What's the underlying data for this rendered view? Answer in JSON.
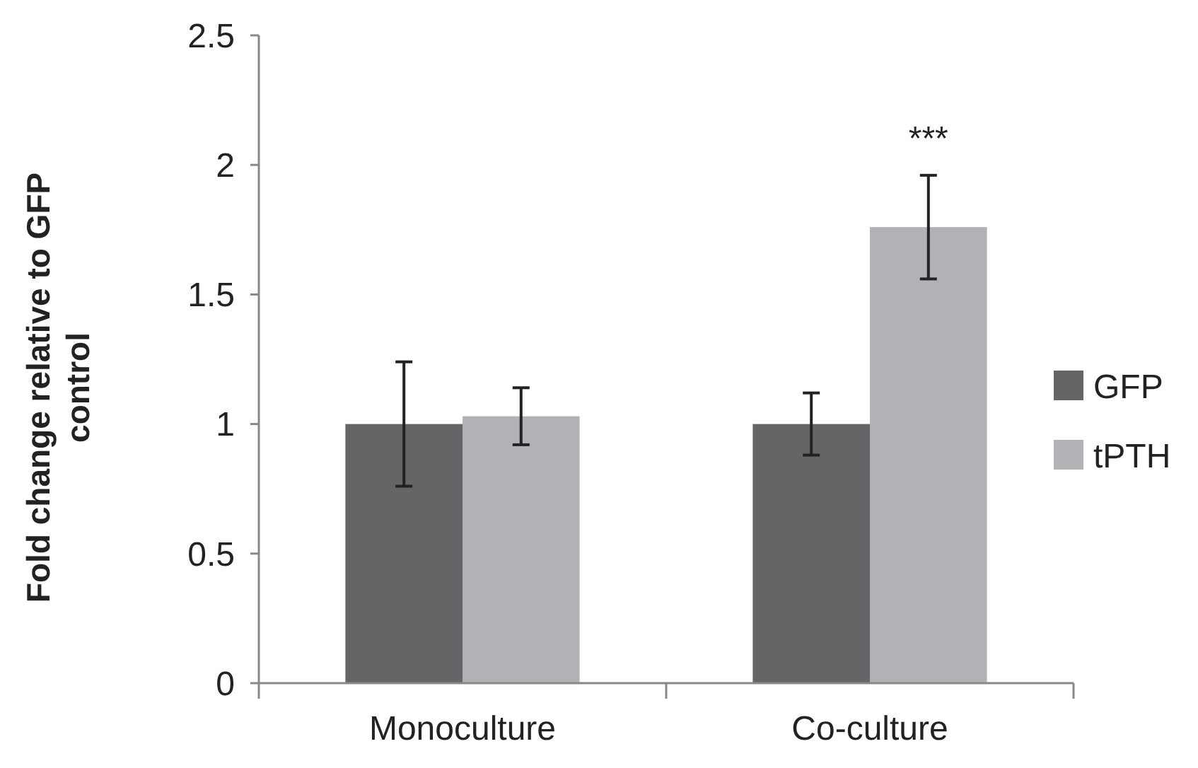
{
  "chart_data": {
    "type": "bar",
    "ylabel": "Fold change relative to GFP control",
    "categories": [
      "Monoculture",
      "Co-culture"
    ],
    "series": [
      {
        "name": "GFP",
        "color": "#646567",
        "values": [
          1.0,
          1.0
        ],
        "errors": [
          0.24,
          0.12
        ]
      },
      {
        "name": "tPTH",
        "color": "#b1b2b5",
        "values": [
          1.03,
          1.76
        ],
        "errors": [
          0.11,
          0.2
        ]
      }
    ],
    "ylim": [
      0,
      2.5
    ],
    "yticks": [
      0,
      0.5,
      1,
      1.5,
      2,
      2.5
    ],
    "grid": false,
    "legend": "right",
    "annotations": [
      "***"
    ]
  }
}
